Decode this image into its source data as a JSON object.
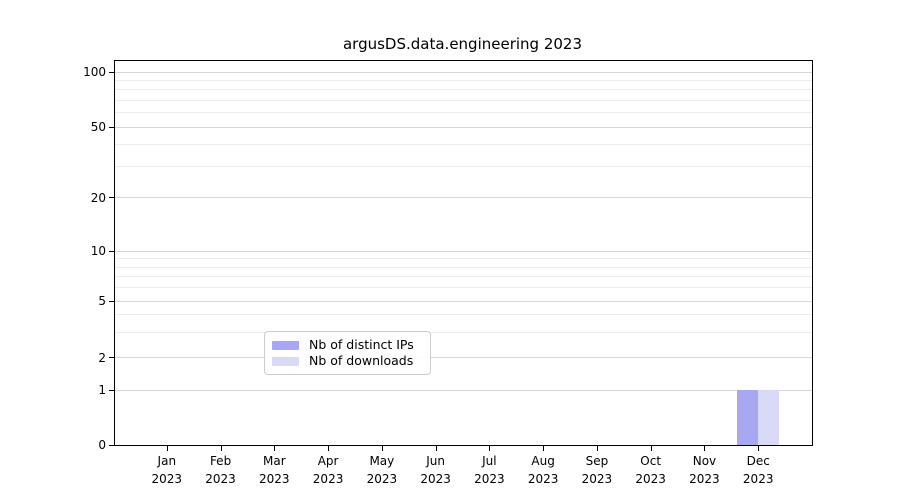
{
  "chart_data": {
    "type": "bar",
    "title": "argusDS.data.engineering 2023",
    "categories": [
      "Jan 2023",
      "Feb 2023",
      "Mar 2023",
      "Apr 2023",
      "May 2023",
      "Jun 2023",
      "Jul 2023",
      "Aug 2023",
      "Sep 2023",
      "Oct 2023",
      "Nov 2023",
      "Dec 2023"
    ],
    "series": [
      {
        "name": "Nb of distinct IPs",
        "color": "#a8a8f0",
        "values": [
          0,
          0,
          0,
          0,
          0,
          0,
          0,
          0,
          0,
          0,
          0,
          1
        ]
      },
      {
        "name": "Nb of downloads",
        "color": "#d9d9f8",
        "values": [
          0,
          0,
          0,
          0,
          0,
          0,
          0,
          0,
          0,
          0,
          0,
          1
        ]
      }
    ],
    "y_axis": {
      "scale": "symlog",
      "major_ticks": [
        0,
        1,
        2,
        5,
        10,
        20,
        50,
        100
      ],
      "minor_ticks": [
        3,
        4,
        6,
        7,
        8,
        9,
        30,
        40,
        60,
        70,
        80,
        90
      ],
      "range_top": 110
    },
    "legend": {
      "position": "lower center",
      "entries": [
        "Nb of distinct IPs",
        "Nb of downloads"
      ]
    },
    "grid": true,
    "colors": {
      "grid_major": "#d6d6d6",
      "grid_minor": "#ececec",
      "spine": "#000000",
      "background": "#ffffff"
    }
  }
}
